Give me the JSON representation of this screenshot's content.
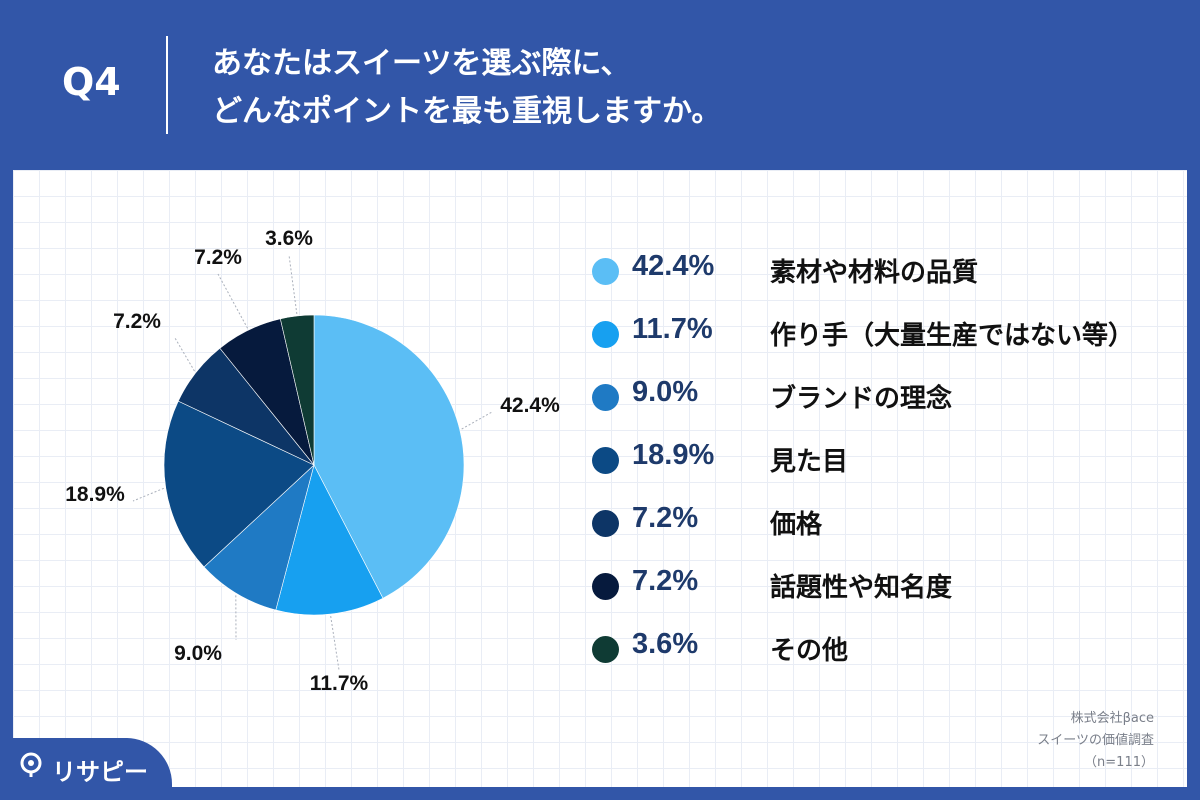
{
  "header": {
    "q_label": "Q4",
    "question_line1": "あなたはスイーツを選ぶ際に、",
    "question_line2": "どんなポイントを最も重視しますか。"
  },
  "colors": {
    "background": "#3256a8",
    "panel": "#ffffff",
    "legend_pct": "#1e3a6b"
  },
  "chart_data": {
    "type": "pie",
    "title": "",
    "unit": "%",
    "slices": [
      {
        "label": "素材や材料の品質",
        "value": 42.4,
        "display": "42.4%",
        "color": "#5bbef5"
      },
      {
        "label": "作り手（大量生産ではない等）",
        "value": 11.7,
        "display": "11.7%",
        "color": "#17a0f0"
      },
      {
        "label": "ブランドの理念",
        "value": 9.0,
        "display": "9.0%",
        "color": "#1f7ac4"
      },
      {
        "label": "見た目",
        "value": 18.9,
        "display": "18.9%",
        "color": "#0c4a85"
      },
      {
        "label": "価格",
        "value": 7.2,
        "display": "7.2%",
        "color": "#0d3566"
      },
      {
        "label": "話題性や知名度",
        "value": 7.2,
        "display": "7.2%",
        "color": "#061a3d"
      },
      {
        "label": "その他",
        "value": 3.6,
        "display": "3.6%",
        "color": "#0f3b34"
      }
    ]
  },
  "source": {
    "line1": "株式会社βace",
    "line2": "スイーツの価値調査",
    "line3": "（n=111）"
  },
  "logo": {
    "text": "リサピー",
    "icon": "pin-icon"
  }
}
